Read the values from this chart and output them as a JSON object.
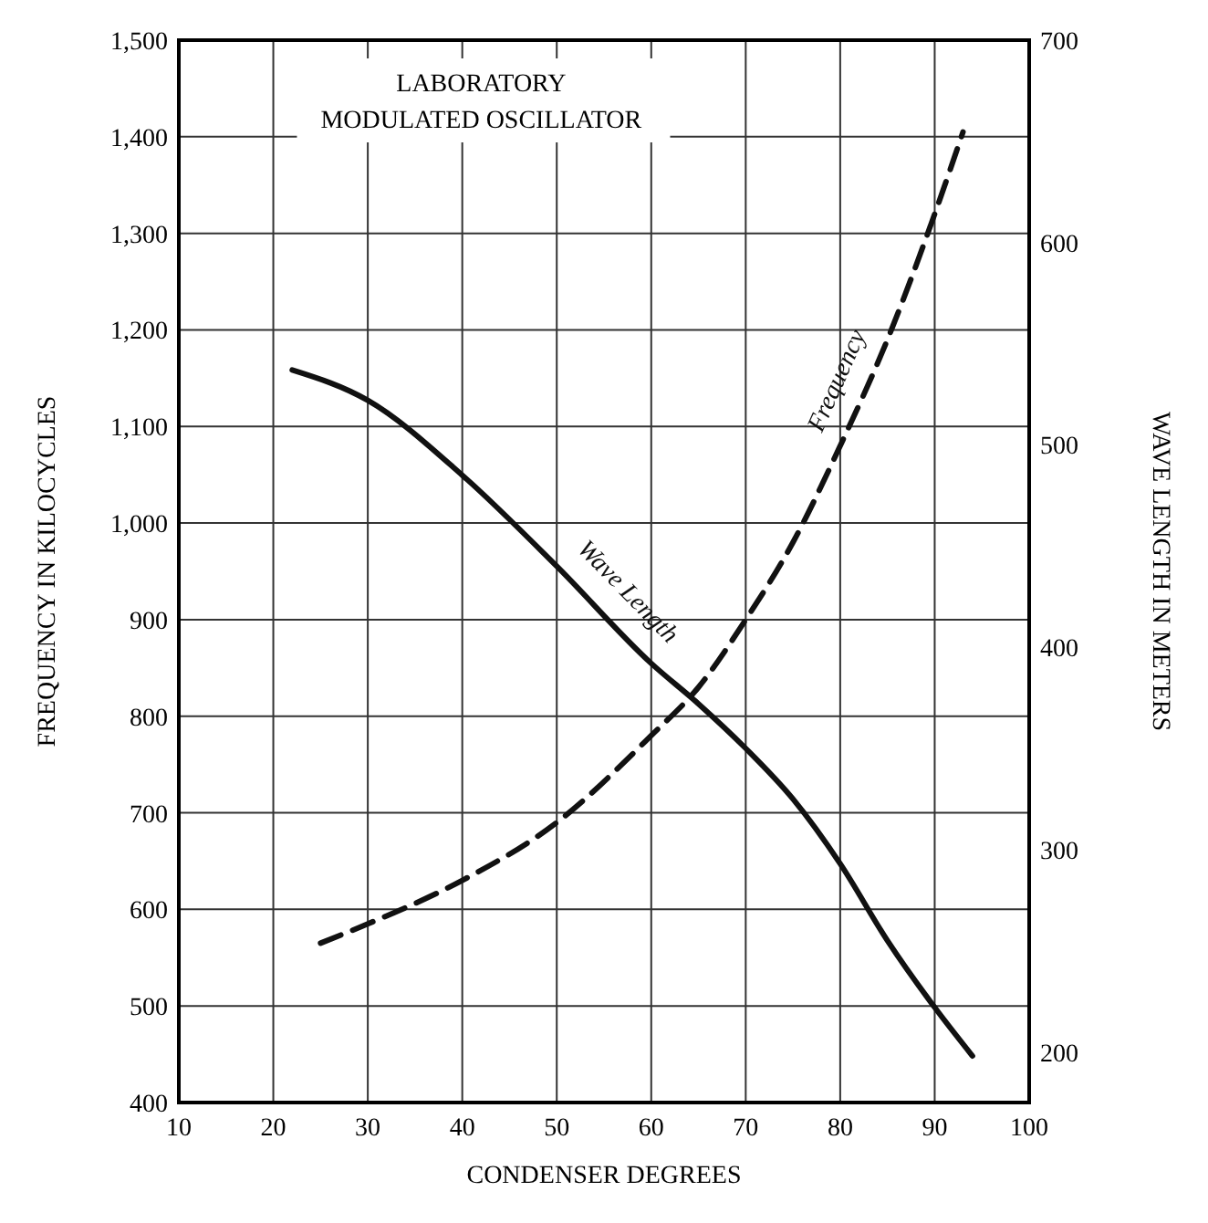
{
  "chart_data": {
    "type": "line",
    "title": "LABORATORY",
    "subtitle": "MODULATED OSCILLATOR",
    "xlabel": "CONDENSER DEGREES",
    "ylabel": "FREQUENCY IN KILOCYCLES",
    "y2label": "WAVE LENGTH IN METERS",
    "xlim": [
      10,
      100
    ],
    "xticks": [
      10,
      20,
      30,
      40,
      50,
      60,
      70,
      80,
      90,
      100
    ],
    "ylim": [
      400,
      1500
    ],
    "yticks": [
      400,
      500,
      600,
      700,
      800,
      900,
      {
        "value": 1000,
        "label": "1,000"
      },
      {
        "value": 1100,
        "label": "1,100"
      },
      {
        "value": 1200,
        "label": "1,200"
      },
      {
        "value": 1300,
        "label": "1,300"
      },
      {
        "value": 1400,
        "label": "1,400"
      },
      {
        "value": 1500,
        "label": "1,500"
      }
    ],
    "y2lim": [
      175,
      700
    ],
    "y2ticks": [
      200,
      300,
      400,
      500,
      600,
      700
    ],
    "grid": true,
    "marker": "none",
    "series": [
      {
        "name": "Wave Length",
        "color": "#111111",
        "axis": "y2",
        "line_style": "solid",
        "x": [
          22,
          30,
          40,
          50,
          60,
          65,
          70,
          75,
          80,
          85,
          90,
          94
        ],
        "values": [
          537,
          522,
          485,
          440,
          392,
          372,
          350,
          325,
          293,
          255,
          222,
          198
        ]
      },
      {
        "name": "Frequency",
        "color": "#111111",
        "line_style": "dashed",
        "x": [
          25,
          30,
          40,
          50,
          60,
          65,
          70,
          75,
          80,
          85,
          90,
          93
        ],
        "values": [
          565,
          585,
          630,
          690,
          780,
          830,
          900,
          980,
          1080,
          1190,
          1320,
          1405
        ]
      }
    ]
  }
}
